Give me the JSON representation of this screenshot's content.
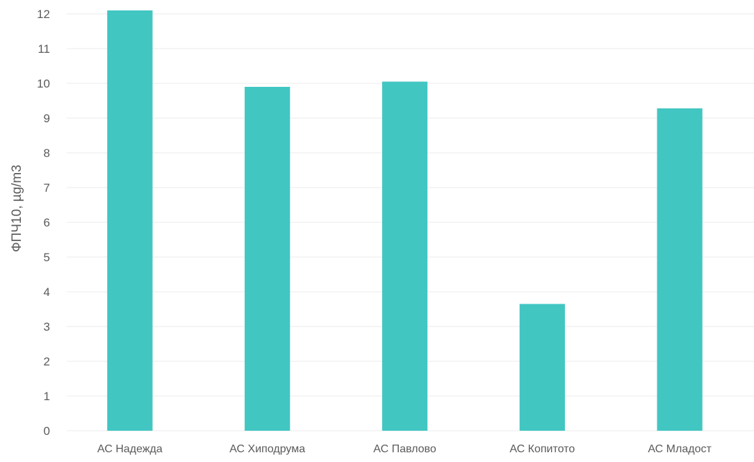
{
  "colors": {
    "bar": "#42c6c2",
    "grid": "#ebebeb",
    "text": "#5a5a5a"
  },
  "chart_data": {
    "type": "bar",
    "title": "",
    "xlabel": "",
    "ylabel": "ФПЧ10, µg/m3",
    "categories": [
      "АС Надежда",
      "АС Хиподрума",
      "АС Павлово",
      "АС Копитото",
      "АС Младост"
    ],
    "values": [
      12.1,
      9.9,
      10.05,
      3.65,
      9.28
    ],
    "ylim": [
      0,
      12
    ],
    "yticks": [
      0,
      1,
      2,
      3,
      4,
      5,
      6,
      7,
      8,
      9,
      10,
      11,
      12
    ],
    "grid": true,
    "legend": "none"
  }
}
